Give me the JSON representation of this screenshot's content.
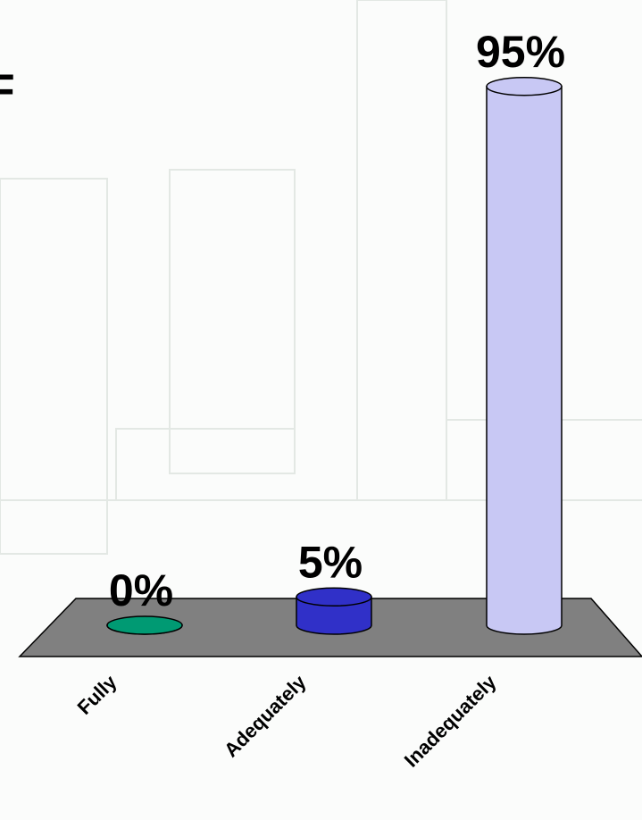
{
  "chart_data": {
    "type": "cylinder_bar",
    "title": "F",
    "categories": [
      "Fully",
      "Adequately",
      "Inadequately"
    ],
    "values": [
      0,
      5,
      95
    ],
    "value_labels": [
      "0%",
      "5%",
      "95%"
    ],
    "colors": [
      "#009a73",
      "#3030c8",
      "#c8c8f4"
    ],
    "ylim": [
      0,
      100
    ]
  }
}
